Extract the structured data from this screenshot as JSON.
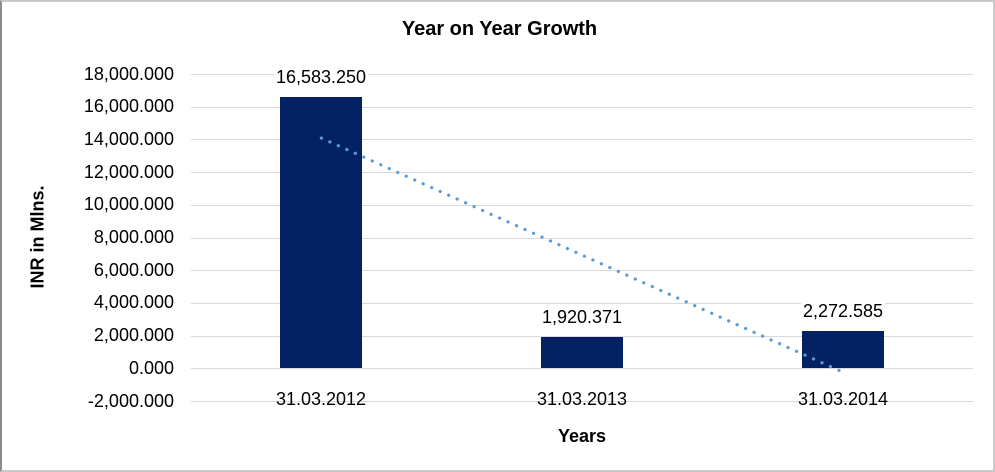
{
  "frame": {
    "background": "#ffffff",
    "border_color": "#c9c9c9"
  },
  "chart_data": {
    "type": "bar",
    "title": "Year on Year Growth",
    "xlabel": "Years",
    "ylabel": "INR in Mlns.",
    "categories": [
      "31.03.2012",
      "31.03.2013",
      "31.03.2014"
    ],
    "values": [
      16583.25,
      1920.371,
      2272.585
    ],
    "data_labels": [
      "16,583.250",
      "1,920.371",
      "2,272.585"
    ],
    "y_ticks": [
      "18,000.000",
      "16,000.000",
      "14,000.000",
      "12,000.000",
      "10,000.000",
      "8,000.000",
      "6,000.000",
      "4,000.000",
      "2,000.000",
      "0.000",
      "-2,000.000"
    ],
    "y_tick_values": [
      18000,
      16000,
      14000,
      12000,
      10000,
      8000,
      6000,
      4000,
      2000,
      0,
      -2000
    ],
    "ylim": [
      -2000,
      18000
    ],
    "grid": true,
    "legend": "none",
    "bar_color": "#042263",
    "gridline_color": "#d9d9d9",
    "trendline": {
      "type": "linear",
      "style": "dotted",
      "color": "#5b9bd5",
      "start_value": 14080,
      "end_value": -230
    }
  }
}
